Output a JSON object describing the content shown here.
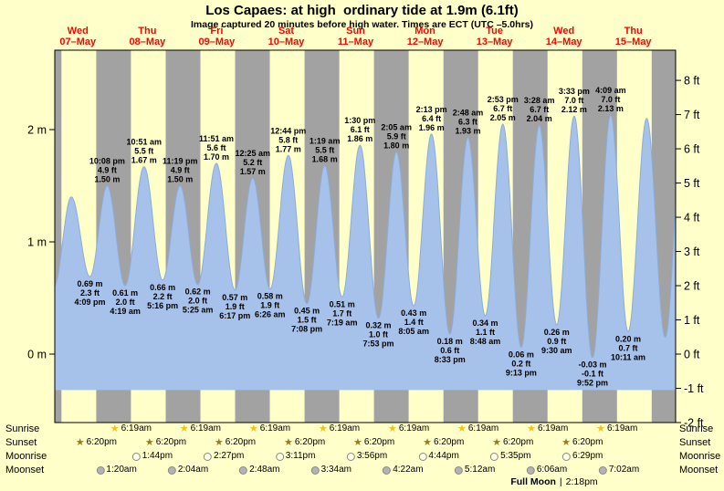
{
  "title": "Los Capaes: at high  ordinary tide at 1.9m (6.1ft)",
  "subtitle": "Image captured 20 minutes before high water. Times are ECT (UTC –5.0hrs)",
  "days": [
    {
      "name": "Wed",
      "date": "07–May"
    },
    {
      "name": "Thu",
      "date": "08–May"
    },
    {
      "name": "Fri",
      "date": "09–May"
    },
    {
      "name": "Sat",
      "date": "10–May"
    },
    {
      "name": "Sun",
      "date": "11–May"
    },
    {
      "name": "Mon",
      "date": "12–May"
    },
    {
      "name": "Tue",
      "date": "13–May"
    },
    {
      "name": "Wed",
      "date": "14–May"
    },
    {
      "name": "Thu",
      "date": "15–May"
    }
  ],
  "axis": {
    "left": [
      {
        "value": 2,
        "label": "2 m"
      },
      {
        "value": 1,
        "label": "1 m"
      },
      {
        "value": 0,
        "label": "0 m"
      }
    ],
    "right": [
      {
        "value": 8,
        "label": "8 ft"
      },
      {
        "value": 7,
        "label": "7 ft"
      },
      {
        "value": 6,
        "label": "6 ft"
      },
      {
        "value": 5,
        "label": "5 ft"
      },
      {
        "value": 4,
        "label": "4 ft"
      },
      {
        "value": 3,
        "label": "3 ft"
      },
      {
        "value": 2,
        "label": "2 ft"
      },
      {
        "value": 1,
        "label": "1 ft"
      },
      {
        "value": 0,
        "label": "0 ft"
      },
      {
        "value": -1,
        "label": "-1 ft"
      },
      {
        "value": -2,
        "label": "-2 ft"
      }
    ]
  },
  "chart_data": {
    "type": "area",
    "title": "Los Capaes: at high  ordinary tide at 1.9m (6.1ft)",
    "x_unit": "hours from Wed 07-May 00:00 local (ECT)",
    "x_start_hour": 4.0,
    "x_end_hour": 218.6,
    "num_days": 9,
    "y_unit_left": "m",
    "y_unit_right": "ft",
    "fill_base_m": -0.32,
    "sun": {
      "sunrise_hour": 6.317,
      "sunset_hour": 18.333
    },
    "colors": {
      "day_bg": "#ffffc9",
      "night_bg": "#a2a2a2",
      "water": "#a6c1ea",
      "water_edge": "#8cacd8",
      "day_label": "#ff0000",
      "sunrise_star": "#f2c11e",
      "sunset_star": "#9a7b1c",
      "moonrise_fill": "#ffffe6",
      "moonset_fill": "#b3b3b3",
      "moon_border": "#888888"
    },
    "extremes": [
      {
        "t": 3.7,
        "m": 0.6,
        "type": "low",
        "label": null
      },
      {
        "t": 9.72,
        "m": 1.4,
        "type": "high",
        "label": null
      },
      {
        "t": 16.15,
        "m": 0.69,
        "type": "low",
        "label": [
          "0.69 m",
          "2.3 ft",
          "4:09 pm"
        ]
      },
      {
        "t": 22.13,
        "m": 1.5,
        "type": "high",
        "label": [
          "10:08 pm",
          "4.9 ft",
          "1.50 m"
        ]
      },
      {
        "t": 28.32,
        "m": 0.61,
        "type": "low",
        "label": [
          "0.61 m",
          "2.0 ft",
          "4:19 am"
        ]
      },
      {
        "t": 34.85,
        "m": 1.67,
        "type": "high",
        "label": [
          "10:51 am",
          "5.5 ft",
          "1.67 m"
        ]
      },
      {
        "t": 41.27,
        "m": 0.66,
        "type": "low",
        "label": [
          "0.66 m",
          "2.2 ft",
          "5:16 pm"
        ]
      },
      {
        "t": 47.32,
        "m": 1.5,
        "type": "high",
        "label": [
          "11:19 pm",
          "4.9 ft",
          "1.50 m"
        ]
      },
      {
        "t": 53.42,
        "m": 0.62,
        "type": "low",
        "label": [
          "0.62 m",
          "2.0 ft",
          "5:25 am"
        ]
      },
      {
        "t": 59.85,
        "m": 1.7,
        "type": "high",
        "label": [
          "11:51 am",
          "5.6 ft",
          "1.70 m"
        ]
      },
      {
        "t": 66.28,
        "m": 0.57,
        "type": "low",
        "label": [
          "0.57 m",
          "1.9 ft",
          "6:17 pm"
        ]
      },
      {
        "t": 72.42,
        "m": 1.57,
        "type": "high",
        "label": [
          "12:25 am",
          "5.2 ft",
          "1.57 m"
        ]
      },
      {
        "t": 78.43,
        "m": 0.58,
        "type": "low",
        "label": [
          "0.58 m",
          "1.9 ft",
          "6:26 am"
        ]
      },
      {
        "t": 84.73,
        "m": 1.77,
        "type": "high",
        "label": [
          "12:44 pm",
          "5.8 ft",
          "1.77 m"
        ]
      },
      {
        "t": 91.13,
        "m": 0.45,
        "type": "low",
        "label": [
          "0.45 m",
          "1.5 ft",
          "7:08 pm"
        ]
      },
      {
        "t": 97.32,
        "m": 1.68,
        "type": "high",
        "label": [
          "1:19 am",
          "5.5 ft",
          "1.68 m"
        ]
      },
      {
        "t": 103.32,
        "m": 0.51,
        "type": "low",
        "label": [
          "0.51 m",
          "1.7 ft",
          "7:19 am"
        ]
      },
      {
        "t": 109.5,
        "m": 1.86,
        "type": "high",
        "label": [
          "1:30 pm",
          "6.1 ft",
          "1.86 m"
        ]
      },
      {
        "t": 115.88,
        "m": 0.32,
        "type": "low",
        "label": [
          "0.32 m",
          "1.0 ft",
          "7:53 pm"
        ]
      },
      {
        "t": 122.08,
        "m": 1.8,
        "type": "high",
        "label": [
          "2:05 am",
          "5.9 ft",
          "1.80 m"
        ]
      },
      {
        "t": 128.08,
        "m": 0.43,
        "type": "low",
        "label": [
          "0.43 m",
          "1.4 ft",
          "8:05 am"
        ]
      },
      {
        "t": 134.22,
        "m": 1.96,
        "type": "high",
        "label": [
          "2:13 pm",
          "6.4 ft",
          "1.96 m"
        ]
      },
      {
        "t": 140.55,
        "m": 0.18,
        "type": "low",
        "label": [
          "0.18 m",
          "0.6 ft",
          "8:33 pm"
        ]
      },
      {
        "t": 146.8,
        "m": 1.93,
        "type": "high",
        "label": [
          "2:48 am",
          "6.3 ft",
          "1.93 m"
        ]
      },
      {
        "t": 152.8,
        "m": 0.34,
        "type": "low",
        "label": [
          "0.34 m",
          "1.1 ft",
          "8:48 am"
        ]
      },
      {
        "t": 158.88,
        "m": 2.05,
        "type": "high",
        "label": [
          "2:53 pm",
          "6.7 ft",
          "2.05 m"
        ]
      },
      {
        "t": 165.22,
        "m": 0.06,
        "type": "low",
        "label": [
          "0.06 m",
          "0.2 ft",
          "9:13 pm"
        ]
      },
      {
        "t": 171.47,
        "m": 2.04,
        "type": "high",
        "label": [
          "3:28 am",
          "6.7 ft",
          "2.04 m"
        ]
      },
      {
        "t": 177.5,
        "m": 0.26,
        "type": "low",
        "label": [
          "0.26 m",
          "0.9 ft",
          "9:30 am"
        ]
      },
      {
        "t": 183.55,
        "m": 2.12,
        "type": "high",
        "label": [
          "3:33 pm",
          "7.0 ft",
          "2.12 m"
        ]
      },
      {
        "t": 189.87,
        "m": -0.03,
        "type": "low",
        "label": [
          "-0.03 m",
          "-0.1 ft",
          "9:52 pm"
        ]
      },
      {
        "t": 196.15,
        "m": 2.13,
        "type": "high",
        "label": [
          "4:09 am",
          "7.0 ft",
          "2.13 m"
        ]
      },
      {
        "t": 202.18,
        "m": 0.2,
        "type": "low",
        "label": [
          "0.20 m",
          "0.7 ft",
          "10:11 am"
        ]
      },
      {
        "t": 208.6,
        "m": 2.1,
        "type": "high",
        "label": null
      },
      {
        "t": 215.0,
        "m": 0.15,
        "type": "low",
        "label": null
      },
      {
        "t": 221.3,
        "m": 2.15,
        "type": "high",
        "label": null
      }
    ]
  },
  "astro": {
    "row_labels": [
      "Sunrise",
      "Sunset",
      "Moonrise",
      "Moonset"
    ],
    "sunrise": {
      "icon": "star",
      "start_day": 1,
      "times": [
        "6:19am",
        "6:19am",
        "6:19am",
        "6:19am",
        "6:19am",
        "6:19am",
        "6:19am",
        "6:19am"
      ]
    },
    "sunset": {
      "icon": "star",
      "start_day": 0,
      "times": [
        "6:20pm",
        "6:20pm",
        "6:20pm",
        "6:20pm",
        "6:20pm",
        "6:20pm",
        "6:20pm",
        "6:20pm"
      ]
    },
    "moonrise": {
      "icon": "moon-light",
      "start_day": 1,
      "times": [
        "1:44pm",
        "2:27pm",
        "3:11pm",
        "3:56pm",
        "4:44pm",
        "5:35pm",
        "6:29pm"
      ]
    },
    "moonset": {
      "icon": "moon-dark",
      "start_day": 1,
      "times": [
        "1:20am",
        "2:04am",
        "2:48am",
        "3:34am",
        "4:22am",
        "5:12am",
        "6:06am",
        "7:02am"
      ]
    },
    "full_moon": {
      "name": "Full Moon",
      "sep": "|",
      "time": "2:18pm"
    }
  }
}
